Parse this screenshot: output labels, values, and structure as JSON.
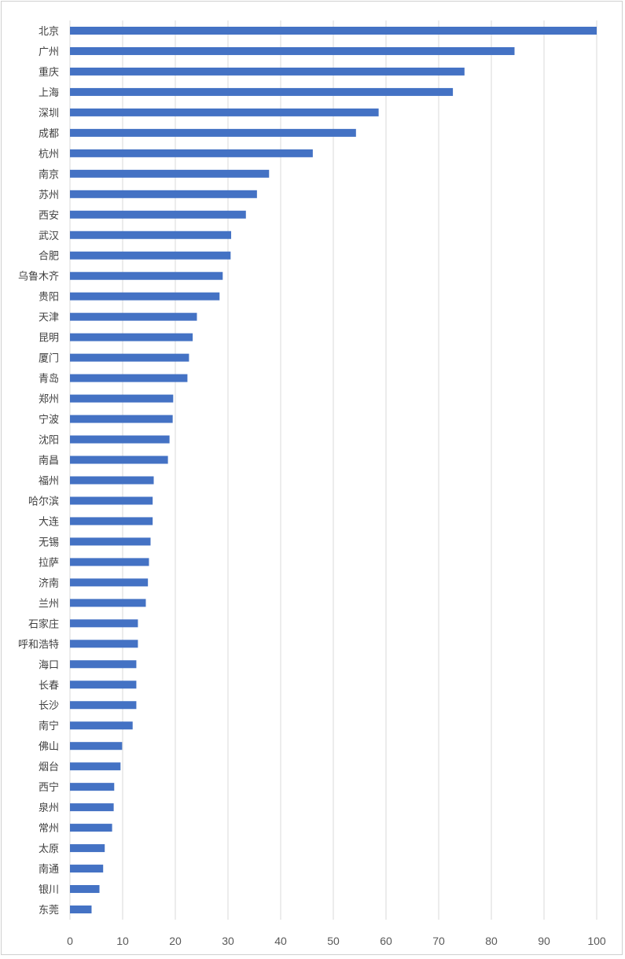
{
  "chart_data": {
    "type": "bar",
    "orientation": "horizontal",
    "categories": [
      "北京",
      "广州",
      "重庆",
      "上海",
      "深圳",
      "成都",
      "杭州",
      "南京",
      "苏州",
      "西安",
      "武汉",
      "合肥",
      "乌鲁木齐",
      "贵阳",
      "天津",
      "昆明",
      "厦门",
      "青岛",
      "郑州",
      "宁波",
      "沈阳",
      "南昌",
      "福州",
      "哈尔滨",
      "大连",
      "无锡",
      "拉萨",
      "济南",
      "兰州",
      "石家庄",
      "呼和浩特",
      "海口",
      "长春",
      "长沙",
      "南宁",
      "佛山",
      "烟台",
      "西宁",
      "泉州",
      "常州",
      "太原",
      "南通",
      "银川",
      "东莞"
    ],
    "values": [
      100,
      84.4,
      74.9,
      72.7,
      58.6,
      54.3,
      46.1,
      37.8,
      35.5,
      33.4,
      30.6,
      30.5,
      29,
      28.4,
      24.1,
      23.3,
      22.6,
      22.3,
      19.6,
      19.5,
      18.9,
      18.6,
      15.9,
      15.7,
      15.7,
      15.3,
      15,
      14.8,
      14.4,
      12.9,
      12.9,
      12.6,
      12.6,
      12.6,
      11.9,
      9.9,
      9.6,
      8.4,
      8.3,
      8,
      6.6,
      6.3,
      5.6,
      4.1
    ],
    "xlim": [
      0,
      100
    ],
    "xticks": [
      0,
      10,
      20,
      30,
      40,
      50,
      60,
      70,
      80,
      90,
      100
    ],
    "title": "",
    "xlabel": "",
    "ylabel": "",
    "grid": "vertical",
    "legend": "none",
    "bar_color": "#4472C4",
    "grid_color": "#D9D9D9"
  }
}
